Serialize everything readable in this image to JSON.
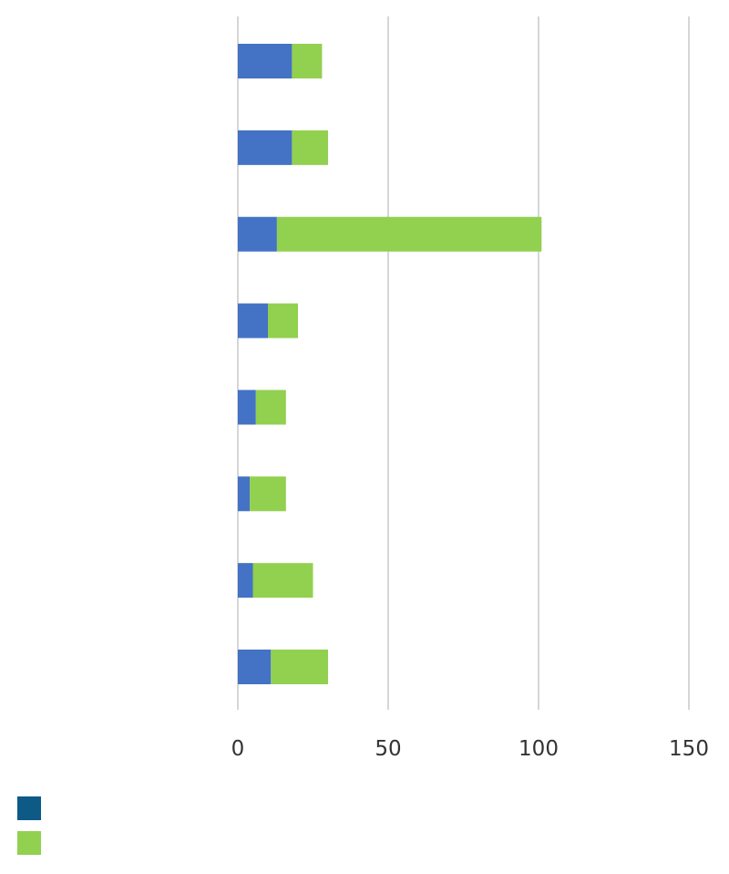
{
  "chart_data": {
    "type": "bar",
    "orientation": "horizontal",
    "stacked": true,
    "categories": [
      "",
      "",
      "",
      "",
      "",
      "",
      "",
      ""
    ],
    "series": [
      {
        "color": "#4472c4",
        "values": [
          18,
          18,
          13,
          10,
          6,
          4,
          5,
          11
        ]
      },
      {
        "color": "#92d050",
        "values": [
          10,
          12,
          88,
          10,
          10,
          12,
          20,
          19
        ]
      }
    ],
    "xlim": [
      0,
      150
    ],
    "x_ticks": [
      0,
      50,
      100,
      150
    ],
    "x_tick_labels": [
      "0",
      "50",
      "100",
      "150"
    ],
    "grid": true,
    "legend": {
      "placement": "bottom-left",
      "entries": [
        {
          "color": "#0d5a86"
        },
        {
          "color": "#92d050"
        }
      ]
    }
  }
}
